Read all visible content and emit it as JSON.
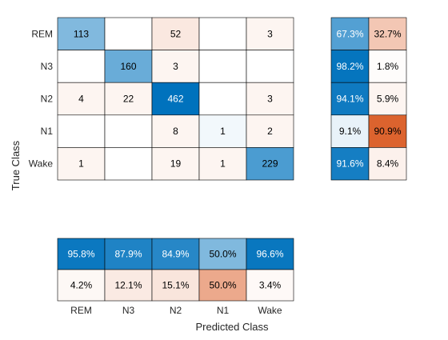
{
  "chart_data": {
    "type": "heatmap",
    "chart_kind": "confusion_matrix",
    "class_labels": [
      "REM",
      "N3",
      "N2",
      "N1",
      "Wake"
    ],
    "ylabel": "True Class",
    "xlabel": "Predicted Class",
    "matrix": [
      [
        113,
        null,
        52,
        null,
        3
      ],
      [
        null,
        160,
        3,
        null,
        null
      ],
      [
        4,
        22,
        462,
        null,
        3
      ],
      [
        null,
        null,
        8,
        1,
        2
      ],
      [
        1,
        null,
        19,
        1,
        229
      ]
    ],
    "row_summary": {
      "correct": [
        "67.3%",
        "98.2%",
        "94.1%",
        "9.1%",
        "91.6%"
      ],
      "incorrect": [
        "32.7%",
        "1.8%",
        "5.9%",
        "90.9%",
        "8.4%"
      ]
    },
    "column_summary": {
      "correct": [
        "95.8%",
        "87.9%",
        "84.9%",
        "50.0%",
        "96.6%"
      ],
      "incorrect": [
        "4.2%",
        "12.1%",
        "15.1%",
        "50.0%",
        "3.4%"
      ]
    },
    "colors": {
      "correct": "#0072BD",
      "incorrect": "#D95319",
      "grid": "#000000",
      "text_dark": "#000000",
      "text_light": "#ffffff"
    }
  }
}
